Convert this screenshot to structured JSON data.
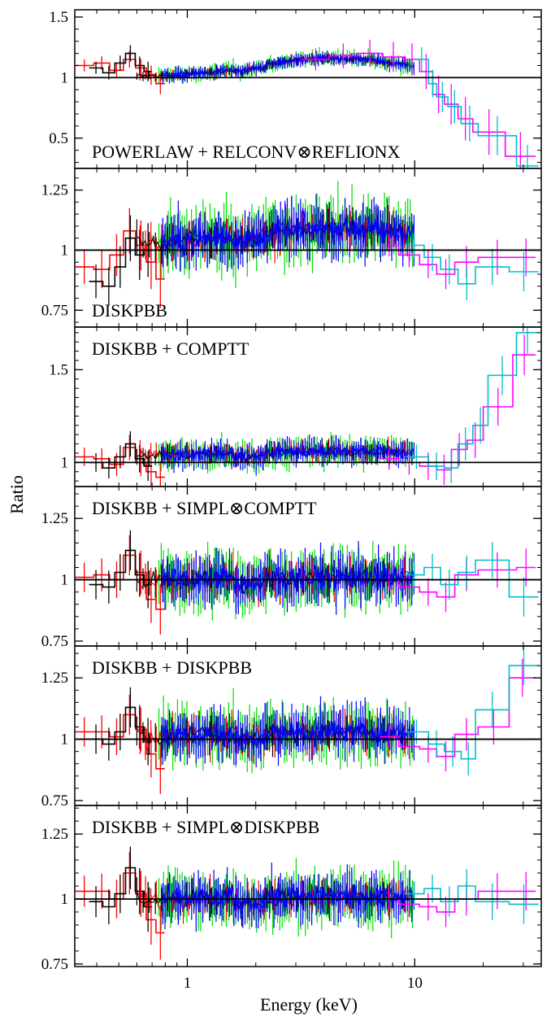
{
  "chart_data": {
    "type": "line",
    "xlabel": "Energy (keV)",
    "ylabel": "Ratio",
    "xscale": "log",
    "xlim": [
      0.32,
      36
    ],
    "xticks": [
      {
        "value": 1,
        "label": "1"
      },
      {
        "value": 10,
        "label": "10"
      }
    ],
    "reference_line": 1,
    "colors": {
      "black": "#000000",
      "red": "#ff0000",
      "green": "#00dd00",
      "blue": "#0000ff",
      "magenta": "#ff00ff",
      "cyan": "#00bfc8"
    },
    "panels": [
      {
        "label": "POWERLAW + RELCONV⊗REFLIONX",
        "ylim": [
          0.25,
          1.56
        ],
        "yticks": [
          {
            "value": 0.5,
            "label": "0.5"
          },
          {
            "value": 1,
            "label": "1"
          },
          {
            "value": 1.5,
            "label": "1.5"
          }
        ],
        "low_energy": {
          "black": [
            1.08,
            1.04,
            1.12,
            1.2,
            1.1,
            1.05
          ],
          "red": [
            1.1,
            1.12,
            1.06,
            1.15,
            1.08,
            1.02,
            0.95
          ],
          "scatter": 0.05
        },
        "mid_level": 1.01,
        "mid_scatter": 0.05,
        "hump": {
          "center": 4.5,
          "width": 0.45,
          "amp": 0.15
        },
        "mid_band_max": 10,
        "high_energy": {
          "magenta": [
            [
              3.2,
              1.15
            ],
            [
              4.2,
              1.18
            ],
            [
              5.6,
              1.2
            ],
            [
              7.2,
              1.17
            ],
            [
              9.0,
              1.15
            ],
            [
              10.5,
              1.05
            ],
            [
              12.0,
              0.86
            ],
            [
              13.5,
              0.78
            ],
            [
              15.5,
              0.66
            ],
            [
              18.0,
              0.55
            ],
            [
              25.0,
              0.35
            ],
            [
              34.0,
              0.35
            ]
          ],
          "cyan": [
            [
              10.0,
              1.15
            ],
            [
              11.5,
              0.95
            ],
            [
              12.5,
              0.84
            ],
            [
              14.0,
              0.76
            ],
            [
              16.0,
              0.62
            ],
            [
              19.0,
              0.52
            ],
            [
              28.0,
              0.27
            ],
            [
              35.0,
              0.27
            ]
          ]
        }
      },
      {
        "label": "DISKPBB",
        "ylim": [
          0.68,
          1.34
        ],
        "yticks": [
          {
            "value": 0.75,
            "label": "0.75"
          },
          {
            "value": 1,
            "label": "1"
          },
          {
            "value": 1.25,
            "label": "1.25"
          }
        ],
        "low_energy": {
          "black": [
            0.87,
            0.85,
            0.93,
            1.05,
            0.98,
            1.0
          ],
          "red": [
            0.93,
            0.92,
            0.98,
            1.08,
            1.02,
            0.95,
            0.88
          ],
          "scatter": 0.07
        },
        "mid_level": 1.03,
        "mid_scatter": 0.1,
        "hump": {
          "center": 4.5,
          "width": 0.5,
          "amp": 0.06
        },
        "mid_band_max": 10,
        "high_energy": {
          "magenta": [
            [
              7.0,
              1.02
            ],
            [
              8.5,
              0.98
            ],
            [
              10.5,
              0.94
            ],
            [
              12.5,
              0.9
            ],
            [
              15.0,
              0.95
            ],
            [
              19.0,
              0.97
            ],
            [
              28.0,
              0.97
            ],
            [
              34.0,
              0.97
            ]
          ],
          "cyan": [
            [
              9.0,
              1.02
            ],
            [
              11.0,
              0.97
            ],
            [
              13.0,
              0.92
            ],
            [
              15.5,
              0.86
            ],
            [
              18.5,
              0.93
            ],
            [
              26.0,
              0.91
            ],
            [
              35.0,
              0.91
            ]
          ]
        }
      },
      {
        "label": "DISKBB + COMPTT",
        "ylim": [
          0.87,
          1.73
        ],
        "yticks": [
          {
            "value": 1,
            "label": "1"
          },
          {
            "value": 1.5,
            "label": "1.5"
          }
        ],
        "low_energy": {
          "black": [
            1.0,
            0.97,
            1.03,
            1.1,
            1.02,
            0.98
          ],
          "red": [
            1.03,
            1.02,
            0.99,
            1.08,
            1.0,
            0.95,
            0.92
          ],
          "scatter": 0.05
        },
        "mid_level": 1.04,
        "mid_scatter": 0.06,
        "hump": {
          "center": 4.5,
          "width": 0.5,
          "amp": 0.02
        },
        "mid_band_max": 10,
        "high_energy": {
          "magenta": [
            [
              7.0,
              1.02
            ],
            [
              8.5,
              1.0
            ],
            [
              10.5,
              0.98
            ],
            [
              12.5,
              0.96
            ],
            [
              14.5,
              1.07
            ],
            [
              17.0,
              1.12
            ],
            [
              20.0,
              1.3
            ],
            [
              27.0,
              1.58
            ],
            [
              34.0,
              1.58
            ]
          ],
          "cyan": [
            [
              9.0,
              1.03
            ],
            [
              11.5,
              0.98
            ],
            [
              13.5,
              0.97
            ],
            [
              15.5,
              1.1
            ],
            [
              18.0,
              1.2
            ],
            [
              21.0,
              1.47
            ],
            [
              28.0,
              1.7
            ],
            [
              35.0,
              1.7
            ]
          ]
        }
      },
      {
        "label": "DISKBB + SIMPL⊗COMPTT",
        "ylim": [
          0.73,
          1.38
        ],
        "yticks": [
          {
            "value": 0.75,
            "label": "0.75"
          },
          {
            "value": 1,
            "label": "1"
          },
          {
            "value": 1.25,
            "label": "1.25"
          }
        ],
        "low_energy": {
          "black": [
            0.98,
            0.97,
            1.03,
            1.12,
            1.02,
            0.98
          ],
          "red": [
            1.01,
            1.02,
            1.0,
            1.1,
            1.03,
            0.92,
            0.88
          ],
          "scatter": 0.06
        },
        "mid_level": 1.0,
        "mid_scatter": 0.09,
        "hump": {
          "center": 4.5,
          "width": 0.5,
          "amp": 0.01
        },
        "mid_band_max": 10,
        "high_energy": {
          "magenta": [
            [
              7.0,
              1.0
            ],
            [
              8.5,
              0.97
            ],
            [
              10.5,
              0.95
            ],
            [
              12.5,
              0.93
            ],
            [
              15.0,
              1.02
            ],
            [
              19.0,
              1.04
            ],
            [
              28.0,
              1.05
            ],
            [
              34.0,
              1.05
            ]
          ],
          "cyan": [
            [
              9.0,
              1.02
            ],
            [
              11.0,
              1.05
            ],
            [
              13.0,
              0.98
            ],
            [
              15.5,
              1.03
            ],
            [
              18.5,
              1.08
            ],
            [
              26.0,
              0.93
            ],
            [
              35.0,
              0.93
            ]
          ]
        }
      },
      {
        "label": "DISKBB + DISKPBB",
        "ylim": [
          0.73,
          1.38
        ],
        "yticks": [
          {
            "value": 0.75,
            "label": "0.75"
          },
          {
            "value": 1,
            "label": "1"
          },
          {
            "value": 1.25,
            "label": "1.25"
          }
        ],
        "low_energy": {
          "black": [
            1.0,
            0.98,
            1.03,
            1.13,
            1.05,
            0.99
          ],
          "red": [
            1.03,
            1.03,
            1.01,
            1.1,
            1.04,
            0.94,
            0.88
          ],
          "scatter": 0.06
        },
        "mid_level": 1.01,
        "mid_scatter": 0.09,
        "hump": {
          "center": 4.5,
          "width": 0.5,
          "amp": 0.02
        },
        "mid_band_max": 10,
        "high_energy": {
          "magenta": [
            [
              7.0,
              1.01
            ],
            [
              8.5,
              0.97
            ],
            [
              10.5,
              0.96
            ],
            [
              12.5,
              0.93
            ],
            [
              15.0,
              1.02
            ],
            [
              19.0,
              1.05
            ],
            [
              26.0,
              1.25
            ],
            [
              34.0,
              1.25
            ]
          ],
          "cyan": [
            [
              9.0,
              1.03
            ],
            [
              11.5,
              0.98
            ],
            [
              13.5,
              0.95
            ],
            [
              16.0,
              0.92
            ],
            [
              18.5,
              1.12
            ],
            [
              26.0,
              1.3
            ],
            [
              35.0,
              1.3
            ]
          ]
        }
      },
      {
        "label": "DISKBB + SIMPL⊗DISKPBB",
        "ylim": [
          0.74,
          1.36
        ],
        "yticks": [
          {
            "value": 0.75,
            "label": "0.75"
          },
          {
            "value": 1,
            "label": "1"
          },
          {
            "value": 1.25,
            "label": "1.25"
          }
        ],
        "low_energy": {
          "black": [
            0.99,
            0.97,
            1.02,
            1.12,
            1.03,
            0.97
          ],
          "red": [
            1.03,
            1.03,
            1.0,
            1.1,
            1.02,
            0.92,
            0.87
          ],
          "scatter": 0.06
        },
        "mid_level": 1.0,
        "mid_scatter": 0.08,
        "hump": {
          "center": 4.5,
          "width": 0.5,
          "amp": 0.01
        },
        "mid_band_max": 10,
        "high_energy": {
          "magenta": [
            [
              7.0,
              1.0
            ],
            [
              8.5,
              0.98
            ],
            [
              10.5,
              0.97
            ],
            [
              12.5,
              0.95
            ],
            [
              15.0,
              1.0
            ],
            [
              19.0,
              1.03
            ],
            [
              28.0,
              1.03
            ],
            [
              34.0,
              1.03
            ]
          ],
          "cyan": [
            [
              9.0,
              1.02
            ],
            [
              11.0,
              1.04
            ],
            [
              13.0,
              0.99
            ],
            [
              15.5,
              1.05
            ],
            [
              18.5,
              0.99
            ],
            [
              26.0,
              0.98
            ],
            [
              35.0,
              0.98
            ]
          ]
        }
      }
    ]
  }
}
